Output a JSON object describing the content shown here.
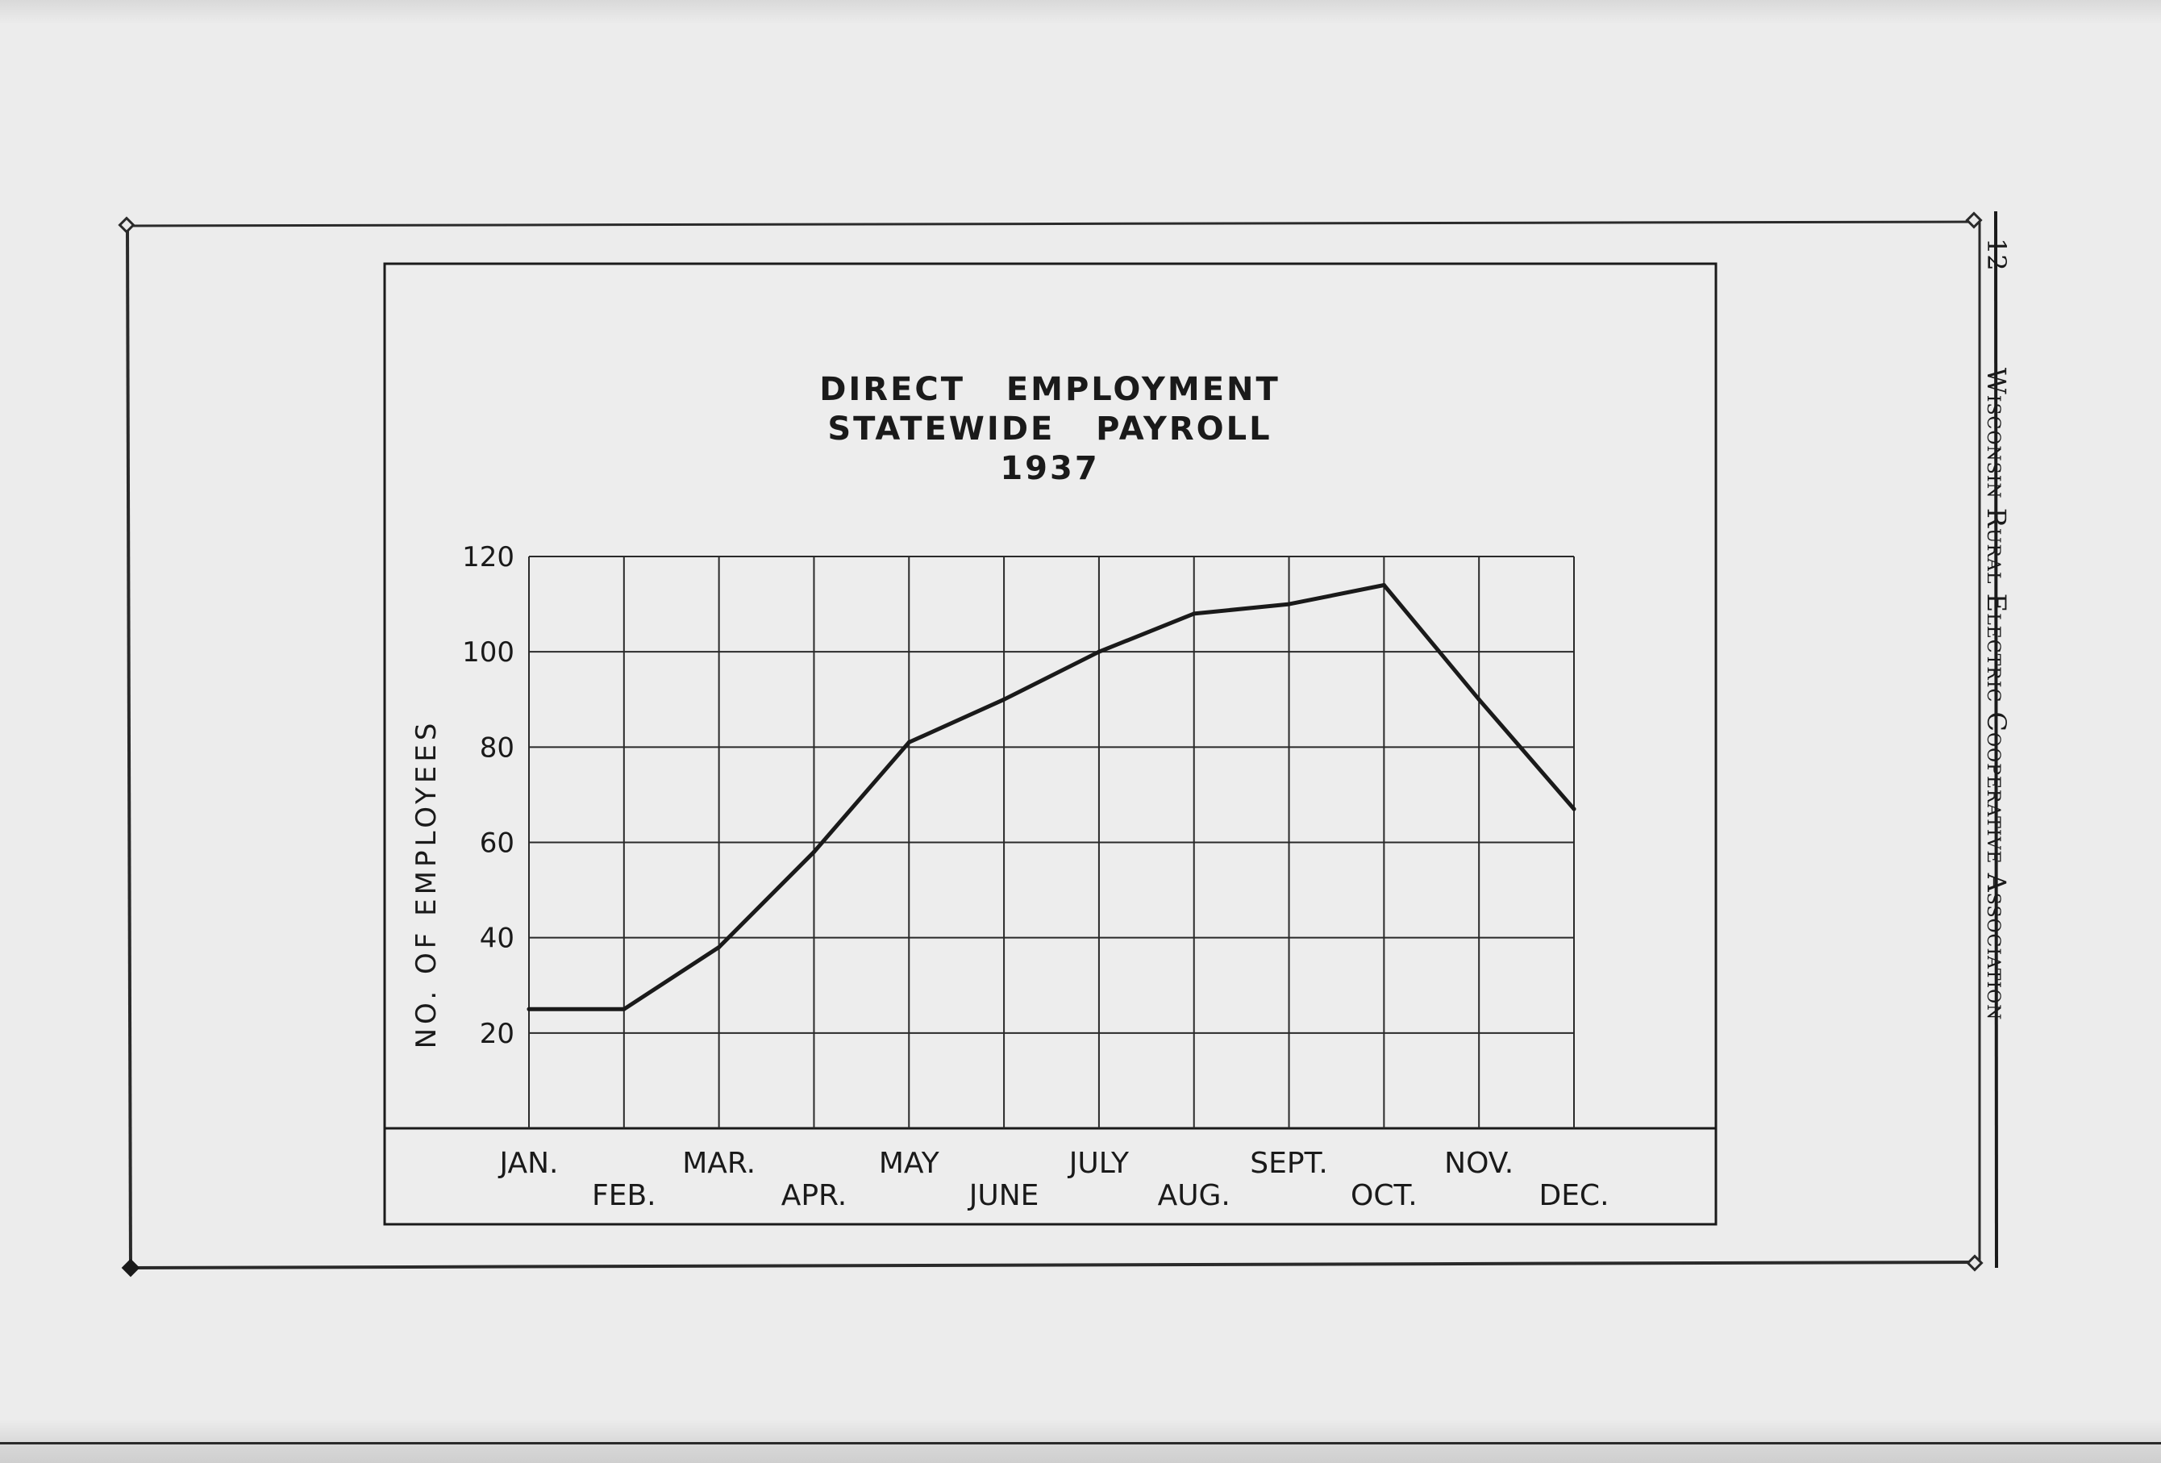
{
  "page_header": {
    "page_number": "12",
    "running_title": "Wisconsin Rural Electric Cooperative Association"
  },
  "chart_data": {
    "type": "line",
    "title_lines": [
      "DIRECT   EMPLOYMENT",
      "STATEWIDE   PAYROLL",
      "1937"
    ],
    "xlabel": "",
    "ylabel": "NO. OF EMPLOYEES",
    "categories": [
      "JAN.",
      "FEB.",
      "MAR.",
      "APR.",
      "MAY",
      "JUNE",
      "JULY",
      "AUG.",
      "SEPT.",
      "OCT.",
      "NOV.",
      "DEC."
    ],
    "category_rows": [
      "top",
      "bottom",
      "top",
      "bottom",
      "top",
      "bottom",
      "top",
      "bottom",
      "top",
      "bottom",
      "top",
      "bottom"
    ],
    "values": [
      25,
      25,
      38,
      58,
      81,
      90,
      100,
      108,
      110,
      114,
      90,
      67
    ],
    "y_ticks": [
      20,
      40,
      60,
      80,
      100,
      120
    ],
    "ylim": [
      0,
      120
    ],
    "grid": true,
    "legend": "none",
    "line_color": "#1a1a1a"
  }
}
